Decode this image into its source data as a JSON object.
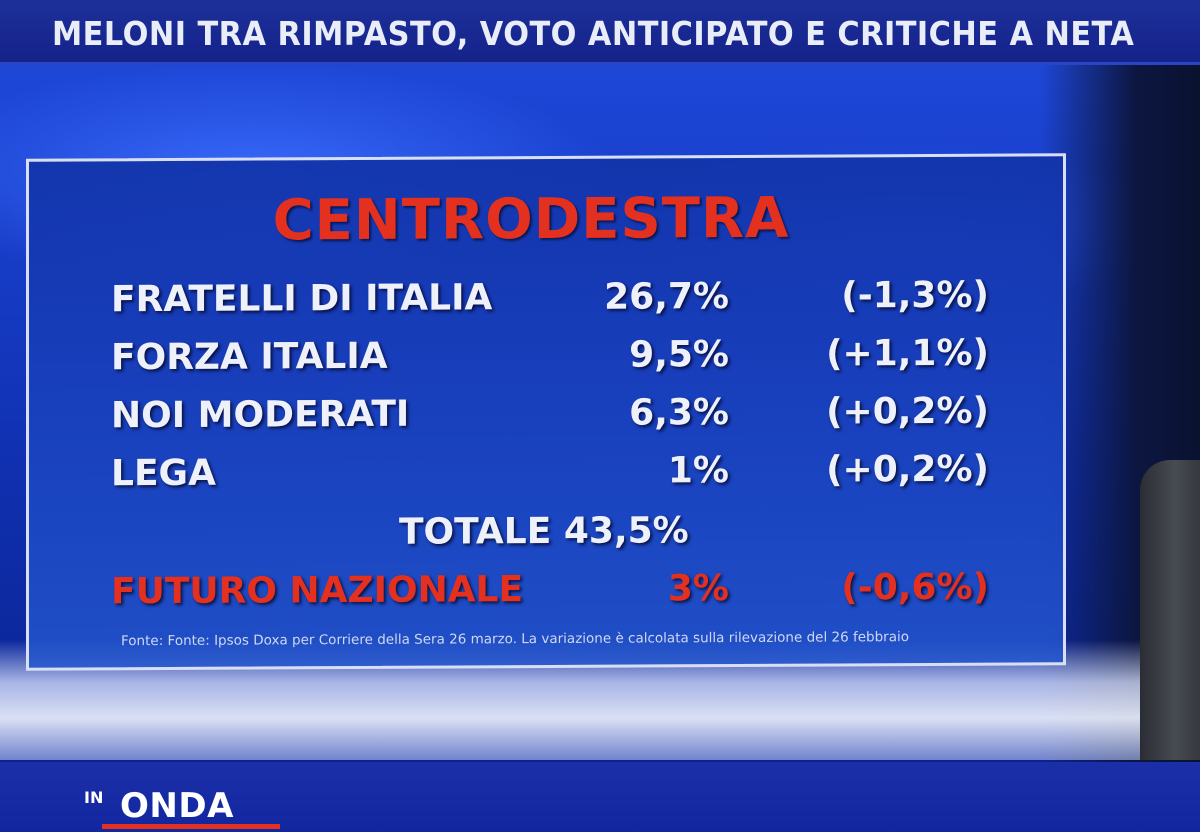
{
  "ticker": {
    "text": "MELONI TRA RIMPASTO, VOTO ANTICIPATO E CRITICHE A NETA"
  },
  "panel": {
    "title": "CENTRODESTRA",
    "rows": [
      {
        "name": "FRATELLI DI ITALIA",
        "pct": "26,7%",
        "change": "(-1,3%)"
      },
      {
        "name": "FORZA ITALIA",
        "pct": "9,5%",
        "change": "(+1,1%)"
      },
      {
        "name": "NOI MODERATI",
        "pct": "6,3%",
        "change": "(+0,2%)"
      },
      {
        "name": "LEGA",
        "pct": "1%",
        "change": "(+0,2%)"
      }
    ],
    "total": "TOTALE 43,5%",
    "extra": {
      "name": "FUTURO NAZIONALE",
      "pct": "3%",
      "change": "(-0,6%)"
    },
    "source": "Fonte: Fonte: Ipsos Doxa per Corriere della Sera 26 marzo. La variazione è calcolata sulla rilevazione del 26 febbraio"
  },
  "logo": {
    "prefix": "IN",
    "name": "ONDA"
  },
  "colors": {
    "accent_red": "#e4311f",
    "panel_blue": "#1a3cb4",
    "text_white": "#eef1fa"
  }
}
